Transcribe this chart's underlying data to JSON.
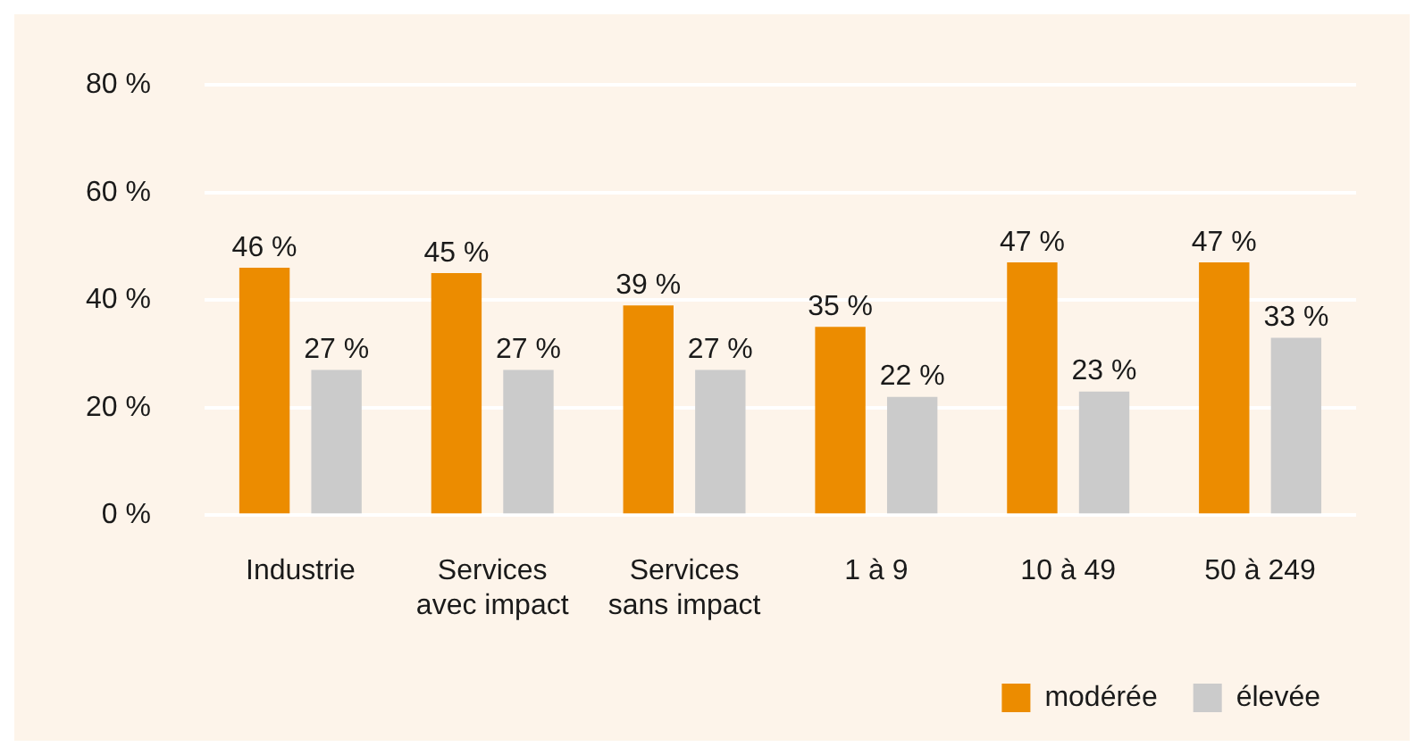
{
  "chart_data": {
    "type": "bar",
    "categories": [
      "Industrie",
      "Services\navec impact",
      "Services\nsans impact",
      "1 à 9",
      "10 à 49",
      "50 à 249"
    ],
    "series": [
      {
        "name": "modérée",
        "color": "#ec8c00",
        "values": [
          46,
          45,
          39,
          35,
          47,
          47
        ],
        "value_labels": [
          "46 %",
          "45 %",
          "39 %",
          "35 %",
          "47 %",
          "47 %"
        ]
      },
      {
        "name": "élevée",
        "color": "#cbcbcb",
        "values": [
          27,
          27,
          27,
          22,
          23,
          33
        ],
        "value_labels": [
          "27 %",
          "27 %",
          "27 %",
          "22 %",
          "23 %",
          "33 %"
        ]
      }
    ],
    "ylim": [
      0,
      80
    ],
    "yticks": [
      {
        "value": 0,
        "label": "0 %"
      },
      {
        "value": 20,
        "label": "20 %"
      },
      {
        "value": 40,
        "label": "40 %"
      },
      {
        "value": 60,
        "label": "60 %"
      },
      {
        "value": 80,
        "label": "80 %"
      }
    ],
    "grid": "y",
    "legend": "bottom right"
  }
}
